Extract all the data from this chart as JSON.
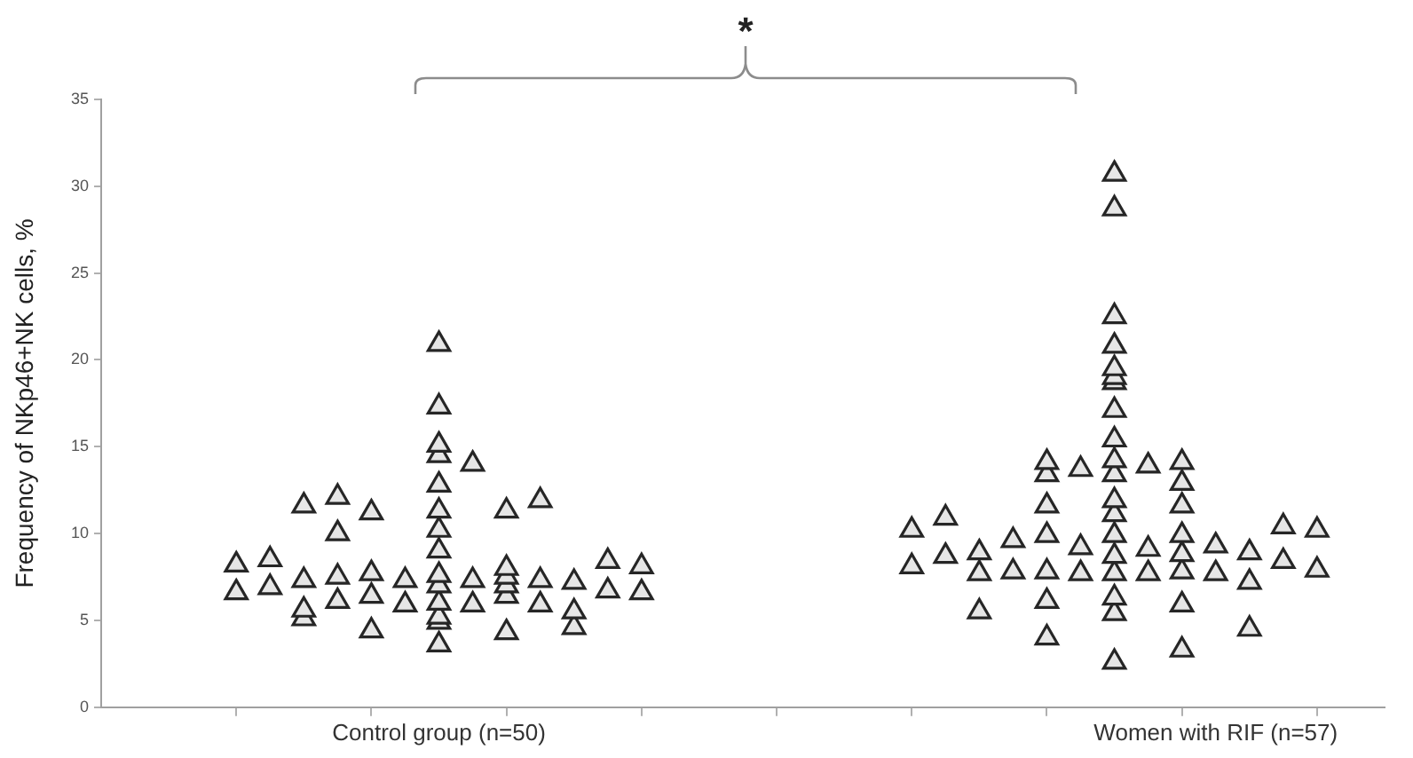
{
  "chart_data": {
    "type": "scatter",
    "ylabel": "Frequency of NKp46+NK cells, %",
    "marker": "triangle",
    "categories": [
      null,
      null,
      null,
      null,
      null,
      null,
      null,
      null,
      null,
      null,
      "Control group (n=50)",
      null,
      null,
      null,
      null,
      null,
      null,
      null,
      null,
      null,
      null,
      null,
      null,
      null,
      null,
      null,
      null,
      null,
      null,
      null,
      null,
      null,
      null,
      "Women with RIF (n=57)",
      null,
      null,
      null,
      null,
      null
    ],
    "ylim": [
      0,
      35
    ],
    "yticks": [
      0,
      5,
      10,
      15,
      20,
      25,
      30,
      35
    ],
    "grid": false,
    "annotations": [
      "*"
    ],
    "series": [
      {
        "color": "#e6e6e6",
        "values": [
          null,
          null,
          null,
          null,
          8.2,
          8.5,
          11.6,
          12.1,
          11.2,
          7.3,
          20.9,
          14.0,
          11.3,
          11.9,
          7.2,
          8.4,
          8.1,
          null,
          null,
          null,
          null,
          null,
          null,
          null,
          10.2,
          10.9,
          8.9,
          9.6,
          14.1,
          13.7,
          30.7,
          13.9,
          14.1,
          9.3,
          8.9,
          10.4,
          10.2,
          null,
          null
        ]
      },
      {
        "color": "#e6e6e6",
        "values": [
          null,
          null,
          null,
          null,
          6.6,
          6.9,
          7.3,
          10.0,
          7.7,
          5.9,
          17.3,
          7.3,
          8.0,
          7.3,
          5.5,
          6.7,
          6.6,
          null,
          null,
          null,
          null,
          null,
          null,
          null,
          8.1,
          8.7,
          7.7,
          7.8,
          13.4,
          9.2,
          28.7,
          9.1,
          12.9,
          7.7,
          7.2,
          8.4,
          7.9,
          null,
          null
        ]
      },
      {
        "color": "#e6e6e6",
        "values": [
          null,
          null,
          null,
          null,
          null,
          null,
          5.6,
          7.5,
          6.4,
          null,
          15.1,
          5.9,
          7.5,
          5.9,
          4.6,
          null,
          null,
          null,
          null,
          null,
          null,
          null,
          null,
          null,
          null,
          null,
          5.5,
          null,
          11.6,
          7.7,
          22.5,
          7.7,
          11.6,
          null,
          4.5,
          null,
          null,
          null,
          null
        ]
      },
      {
        "color": "#e6e6e6",
        "values": [
          null,
          null,
          null,
          null,
          null,
          null,
          5.1,
          6.1,
          4.4,
          null,
          14.5,
          null,
          7.0,
          null,
          null,
          null,
          null,
          null,
          null,
          null,
          null,
          null,
          null,
          null,
          null,
          null,
          null,
          null,
          9.9,
          null,
          20.8,
          null,
          9.9,
          null,
          null,
          null,
          null,
          null,
          null
        ]
      },
      {
        "color": "#e6e6e6",
        "values": [
          null,
          null,
          null,
          null,
          null,
          null,
          null,
          null,
          null,
          null,
          12.8,
          null,
          6.4,
          null,
          null,
          null,
          null,
          null,
          null,
          null,
          null,
          null,
          null,
          null,
          null,
          null,
          null,
          null,
          7.8,
          null,
          19.5,
          null,
          8.8,
          null,
          null,
          null,
          null,
          null,
          null
        ]
      },
      {
        "color": "#e6e6e6",
        "values": [
          null,
          null,
          null,
          null,
          null,
          null,
          null,
          null,
          null,
          null,
          11.3,
          null,
          4.3,
          null,
          null,
          null,
          null,
          null,
          null,
          null,
          null,
          null,
          null,
          null,
          null,
          null,
          null,
          null,
          6.1,
          null,
          19.0,
          null,
          7.8,
          null,
          null,
          null,
          null,
          null,
          null
        ]
      },
      {
        "color": "#e6e6e6",
        "values": [
          null,
          null,
          null,
          null,
          null,
          null,
          null,
          null,
          null,
          null,
          10.2,
          null,
          null,
          null,
          null,
          null,
          null,
          null,
          null,
          null,
          null,
          null,
          null,
          null,
          null,
          null,
          null,
          null,
          4.0,
          null,
          18.7,
          null,
          5.9,
          null,
          null,
          null,
          null,
          null,
          null
        ]
      },
      {
        "color": "#e6e6e6",
        "values": [
          null,
          null,
          null,
          null,
          null,
          null,
          null,
          null,
          null,
          null,
          9.0,
          null,
          null,
          null,
          null,
          null,
          null,
          null,
          null,
          null,
          null,
          null,
          null,
          null,
          null,
          null,
          null,
          null,
          null,
          null,
          17.1,
          null,
          3.3,
          null,
          null,
          null,
          null,
          null,
          null
        ]
      },
      {
        "color": "#e6e6e6",
        "values": [
          null,
          null,
          null,
          null,
          null,
          null,
          null,
          null,
          null,
          null,
          7.6,
          null,
          null,
          null,
          null,
          null,
          null,
          null,
          null,
          null,
          null,
          null,
          null,
          null,
          null,
          null,
          null,
          null,
          null,
          null,
          15.4,
          null,
          null,
          null,
          null,
          null,
          null,
          null,
          null
        ]
      },
      {
        "color": "#e6e6e6",
        "values": [
          null,
          null,
          null,
          null,
          null,
          null,
          null,
          null,
          null,
          null,
          7.0,
          null,
          null,
          null,
          null,
          null,
          null,
          null,
          null,
          null,
          null,
          null,
          null,
          null,
          null,
          null,
          null,
          null,
          null,
          null,
          14.2,
          null,
          null,
          null,
          null,
          null,
          null,
          null,
          null
        ]
      },
      {
        "color": "#e6e6e6",
        "values": [
          null,
          null,
          null,
          null,
          null,
          null,
          null,
          null,
          null,
          null,
          6.0,
          null,
          null,
          null,
          null,
          null,
          null,
          null,
          null,
          null,
          null,
          null,
          null,
          null,
          null,
          null,
          null,
          null,
          null,
          null,
          13.4,
          null,
          null,
          null,
          null,
          null,
          null,
          null,
          null
        ]
      },
      {
        "color": "#e6e6e6",
        "values": [
          null,
          null,
          null,
          null,
          null,
          null,
          null,
          null,
          null,
          null,
          5.2,
          null,
          null,
          null,
          null,
          null,
          null,
          null,
          null,
          null,
          null,
          null,
          null,
          null,
          null,
          null,
          null,
          null,
          null,
          null,
          11.9,
          null,
          null,
          null,
          null,
          null,
          null,
          null,
          null
        ]
      },
      {
        "color": "#e6e6e6",
        "values": [
          null,
          null,
          null,
          null,
          null,
          null,
          null,
          null,
          null,
          null,
          4.9,
          null,
          null,
          null,
          null,
          null,
          null,
          null,
          null,
          null,
          null,
          null,
          null,
          null,
          null,
          null,
          null,
          null,
          null,
          null,
          11.1,
          null,
          null,
          null,
          null,
          null,
          null,
          null,
          null
        ]
      },
      {
        "color": "#e6e6e6",
        "values": [
          null,
          null,
          null,
          null,
          null,
          null,
          null,
          null,
          null,
          null,
          3.6,
          null,
          null,
          null,
          null,
          null,
          null,
          null,
          null,
          null,
          null,
          null,
          null,
          null,
          null,
          null,
          null,
          null,
          null,
          null,
          9.9,
          null,
          null,
          null,
          null,
          null,
          null,
          null,
          null
        ]
      },
      {
        "color": "#e6e6e6",
        "values": [
          null,
          null,
          null,
          null,
          null,
          null,
          null,
          null,
          null,
          null,
          null,
          null,
          null,
          null,
          null,
          null,
          null,
          null,
          null,
          null,
          null,
          null,
          null,
          null,
          null,
          null,
          null,
          null,
          null,
          null,
          8.7,
          null,
          null,
          null,
          null,
          null,
          null,
          null,
          null
        ]
      },
      {
        "color": "#e6e6e6",
        "values": [
          null,
          null,
          null,
          null,
          null,
          null,
          null,
          null,
          null,
          null,
          null,
          null,
          null,
          null,
          null,
          null,
          null,
          null,
          null,
          null,
          null,
          null,
          null,
          null,
          null,
          null,
          null,
          null,
          null,
          null,
          7.7,
          null,
          null,
          null,
          null,
          null,
          null,
          null,
          null
        ]
      },
      {
        "color": "#e6e6e6",
        "values": [
          null,
          null,
          null,
          null,
          null,
          null,
          null,
          null,
          null,
          null,
          null,
          null,
          null,
          null,
          null,
          null,
          null,
          null,
          null,
          null,
          null,
          null,
          null,
          null,
          null,
          null,
          null,
          null,
          null,
          null,
          6.3,
          null,
          null,
          null,
          null,
          null,
          null,
          null,
          null
        ]
      },
      {
        "color": "#e6e6e6",
        "values": [
          null,
          null,
          null,
          null,
          null,
          null,
          null,
          null,
          null,
          null,
          null,
          null,
          null,
          null,
          null,
          null,
          null,
          null,
          null,
          null,
          null,
          null,
          null,
          null,
          null,
          null,
          null,
          null,
          null,
          null,
          5.4,
          null,
          null,
          null,
          null,
          null,
          null,
          null,
          null
        ]
      },
      {
        "color": "#e6e6e6",
        "values": [
          null,
          null,
          null,
          null,
          null,
          null,
          null,
          null,
          null,
          null,
          null,
          null,
          null,
          null,
          null,
          null,
          null,
          null,
          null,
          null,
          null,
          null,
          null,
          null,
          null,
          null,
          null,
          null,
          null,
          null,
          2.6,
          null,
          null,
          null,
          null,
          null,
          null,
          null,
          null
        ]
      }
    ]
  }
}
